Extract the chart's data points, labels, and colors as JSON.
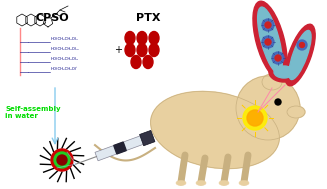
{
  "background_color": "#ffffff",
  "cpso_label": "CPSO",
  "ptx_label": "PTX",
  "self_assembly_label": "Self-assembly\nin water",
  "green_text_color": "#00dd00",
  "arrow_blue": "#88ccee",
  "ptx_dot_color": "#bb0000",
  "mouse_body_color": "#e8d0a0",
  "mouse_outline_color": "#c8b080",
  "blood_vessel_red": "#cc2233",
  "blood_vessel_inner": "#77bbcc",
  "micelle_red": "#cc0000",
  "micelle_green": "#22cc22",
  "micelle_dark": "#880000"
}
